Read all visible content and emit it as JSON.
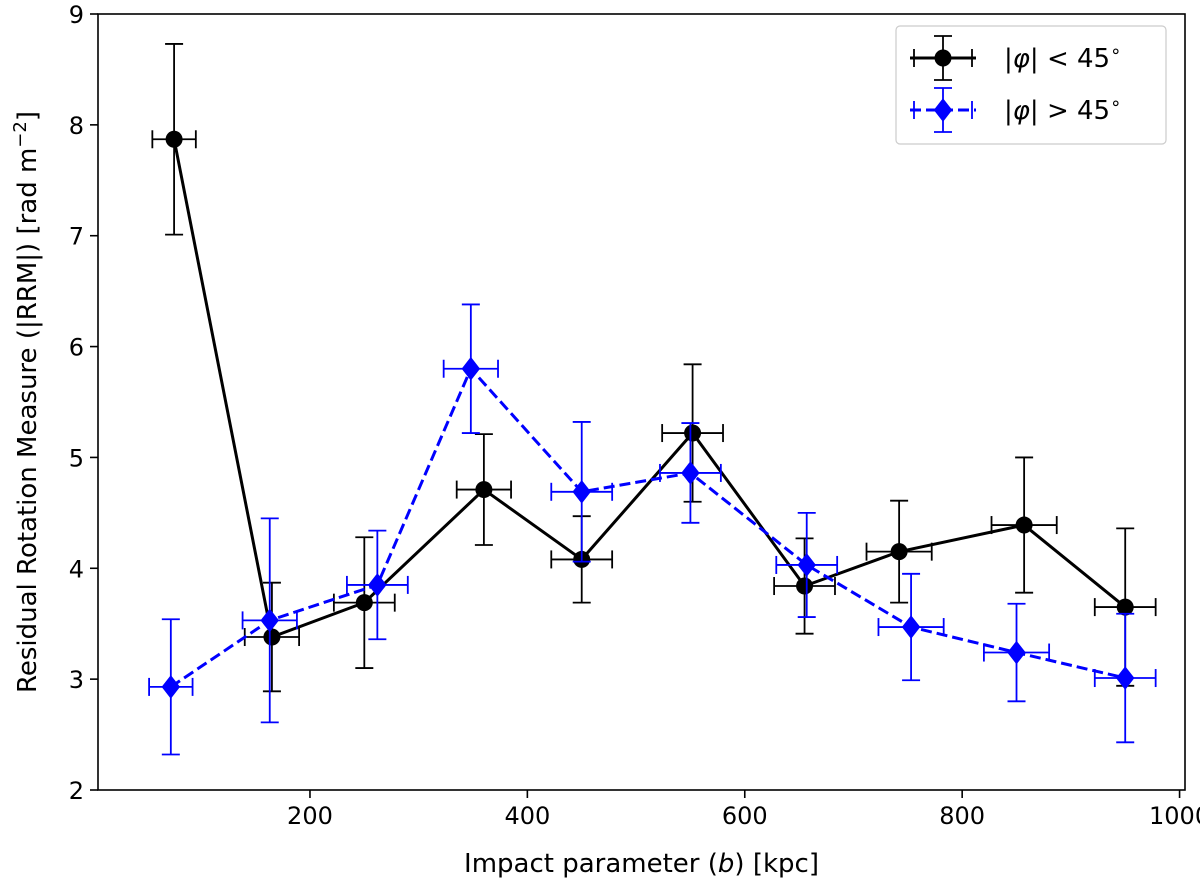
{
  "chart_data": {
    "type": "scatter",
    "title": "",
    "xlabel": "Impact parameter (b) [kpc]",
    "xlabel_parts": {
      "prefix": "Impact parameter (",
      "var": "b",
      "suffix": ") [kpc]"
    },
    "ylabel": "Residual Rotation Measure (|RRM|) [rad m^-2]",
    "ylabel_parts": {
      "main": "Residual Rotation Measure (|RRM|) [rad m",
      "sup": "−2",
      "end": "]"
    },
    "xlim": [
      5,
      1005
    ],
    "ylim": [
      2,
      9
    ],
    "x_ticks": [
      200,
      400,
      600,
      800,
      1000
    ],
    "y_ticks": [
      2,
      3,
      4,
      5,
      6,
      7,
      8,
      9
    ],
    "grid": false,
    "legend_position": "top-right",
    "series": [
      {
        "name": "|φ| < 45°",
        "legend_parts": {
          "pre": "|",
          "var": "φ",
          "post": "| < 45",
          "sup": "∘"
        },
        "color": "#000000",
        "marker": "circle",
        "linestyle": "solid",
        "x": [
          75,
          165,
          250,
          360,
          450,
          552,
          655,
          742,
          857,
          950
        ],
        "y": [
          7.87,
          3.38,
          3.69,
          4.71,
          4.08,
          5.22,
          3.84,
          4.15,
          4.39,
          3.65
        ],
        "xerr": [
          20,
          25,
          28,
          25,
          28,
          28,
          28,
          30,
          30,
          28
        ],
        "yerr": [
          0.86,
          0.49,
          0.59,
          0.5,
          0.39,
          0.62,
          0.43,
          0.46,
          0.61,
          0.71
        ]
      },
      {
        "name": "|φ| > 45°",
        "legend_parts": {
          "pre": "|",
          "var": "φ",
          "post": "| > 45",
          "sup": "∘"
        },
        "color": "#0000ff",
        "marker": "diamond",
        "linestyle": "dashed",
        "x": [
          72,
          163,
          262,
          348,
          450,
          550,
          657,
          753,
          850,
          950
        ],
        "y": [
          2.93,
          3.53,
          3.85,
          5.8,
          4.69,
          4.86,
          4.03,
          3.47,
          3.24,
          3.01
        ],
        "xerr": [
          20,
          25,
          28,
          25,
          28,
          28,
          28,
          30,
          30,
          28
        ],
        "yerr": [
          0.61,
          0.92,
          0.49,
          0.58,
          0.63,
          0.45,
          0.47,
          0.48,
          0.44,
          0.58
        ]
      }
    ]
  }
}
